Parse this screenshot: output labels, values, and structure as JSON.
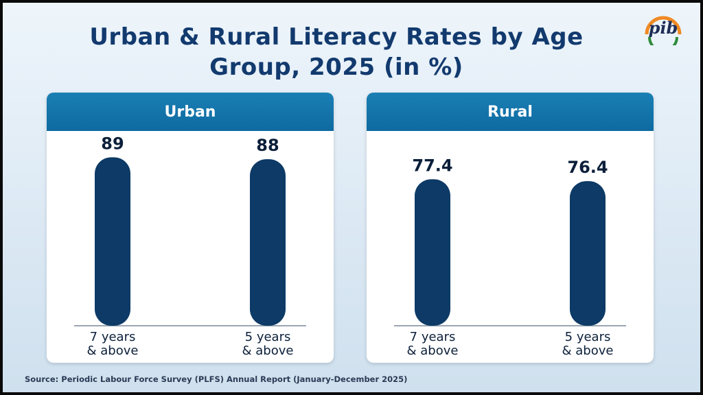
{
  "title": "Urban & Rural Literacy Rates by Age Group, 2025 (in %)",
  "logo_text": "pib",
  "source": "Source: Periodic Labour Force Survey (PLFS) Annual Report (January-December 2025)",
  "colors": {
    "bar": "#0d3a66",
    "header": "#1478ae",
    "title": "#123a6e"
  },
  "chart_data": [
    {
      "type": "bar",
      "title": "Urban",
      "categories": [
        "7 years & above",
        "5 years & above"
      ],
      "category_lines": [
        [
          "7 years",
          "& above"
        ],
        [
          "5 years",
          "& above"
        ]
      ],
      "values": [
        89,
        88
      ],
      "value_labels": [
        "89",
        "88"
      ],
      "ylim": [
        0,
        100
      ],
      "grid": false
    },
    {
      "type": "bar",
      "title": "Rural",
      "categories": [
        "7 years & above",
        "5 years & above"
      ],
      "category_lines": [
        [
          "7 years",
          "& above"
        ],
        [
          "5 years",
          "& above"
        ]
      ],
      "values": [
        77.4,
        76.4
      ],
      "value_labels": [
        "77.4",
        "76.4"
      ],
      "ylim": [
        0,
        100
      ],
      "grid": false
    }
  ]
}
